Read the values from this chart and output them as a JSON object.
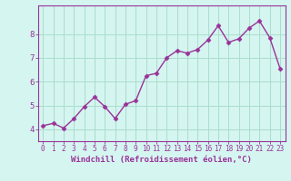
{
  "x": [
    0,
    1,
    2,
    3,
    4,
    5,
    6,
    7,
    8,
    9,
    10,
    11,
    12,
    13,
    14,
    15,
    16,
    17,
    18,
    19,
    20,
    21,
    22,
    23
  ],
  "y": [
    4.15,
    4.25,
    4.05,
    4.45,
    4.95,
    5.35,
    4.95,
    4.45,
    5.05,
    5.2,
    6.25,
    6.35,
    7.0,
    7.3,
    7.2,
    7.35,
    7.75,
    8.35,
    7.65,
    7.8,
    8.25,
    8.55,
    7.85,
    6.55
  ],
  "line_color": "#993399",
  "marker": "D",
  "marker_size": 2.5,
  "line_width": 1.0,
  "bg_color": "#d5f5f0",
  "grid_color": "#aaddcc",
  "axis_color": "#993399",
  "tick_color": "#993399",
  "xlabel": "Windchill (Refroidissement éolien,°C)",
  "xlabel_fontsize": 6.5,
  "tick_fontsize": 5.5,
  "ytick_fontsize": 6.5,
  "ylim": [
    3.5,
    9.2
  ],
  "xlim": [
    -0.5,
    23.5
  ],
  "xticks": [
    0,
    1,
    2,
    3,
    4,
    5,
    6,
    7,
    8,
    9,
    10,
    11,
    12,
    13,
    14,
    15,
    16,
    17,
    18,
    19,
    20,
    21,
    22,
    23
  ],
  "yticks": [
    4,
    5,
    6,
    7,
    8
  ]
}
